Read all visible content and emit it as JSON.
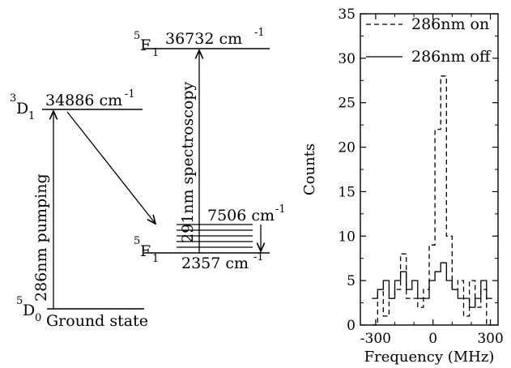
{
  "diagram": {
    "ground": {
      "term": "D",
      "mult": "5",
      "j": "0",
      "name": "Ground state"
    },
    "d1": {
      "term": "D",
      "mult": "3",
      "j": "1",
      "energy": "34886 cm",
      "exp": "-1"
    },
    "f1_upper": {
      "term": "F",
      "mult": "5",
      "j": "1",
      "energy": "36732 cm",
      "exp": "-1"
    },
    "f1_lower": {
      "term": "F",
      "mult": "5",
      "j": "1",
      "energy": "2357 cm",
      "exp": "-1"
    },
    "manifold_top": {
      "energy": "7506 cm",
      "exp": "-1"
    },
    "pumping_label": "286nm pumping",
    "spectroscopy_label": "291nm spectroscopy"
  },
  "chart_data": {
    "type": "line",
    "step": true,
    "xlabel": "Frequency (MHz)",
    "ylabel": "Counts",
    "xlim": [
      -380,
      340
    ],
    "ylim": [
      0,
      35
    ],
    "xticks": [
      -300,
      0,
      300
    ],
    "yticks": [
      0,
      5,
      10,
      15,
      20,
      25,
      30,
      35
    ],
    "legend_position": "top-right",
    "x_edges": [
      -320,
      -290,
      -260,
      -230,
      -200,
      -170,
      -140,
      -110,
      -80,
      -50,
      -20,
      10,
      40,
      70,
      100,
      130,
      160,
      190,
      220,
      250,
      280,
      310
    ],
    "series": [
      {
        "name": "286nm on",
        "style": "dashed",
        "values": [
          0,
          4,
          1,
          3,
          4,
          8,
          3,
          3,
          2,
          4,
          9,
          22,
          28,
          10,
          4,
          5,
          1,
          5,
          2,
          4,
          0
        ]
      },
      {
        "name": "286nm off",
        "style": "solid",
        "values": [
          3,
          4,
          5,
          3,
          5,
          6,
          4,
          5,
          3,
          3,
          5,
          6,
          7,
          5,
          4,
          3,
          3,
          2,
          3,
          5,
          3
        ]
      }
    ]
  }
}
